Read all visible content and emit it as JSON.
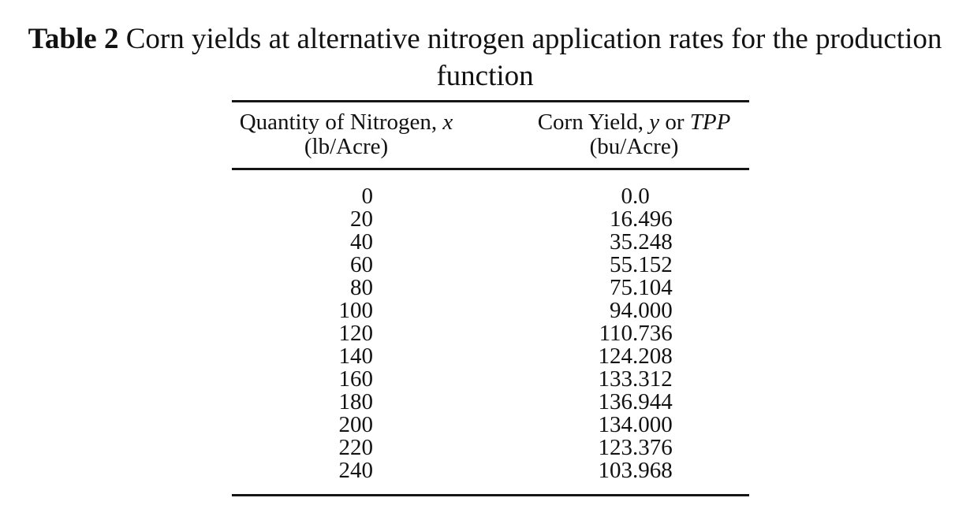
{
  "caption": {
    "label": "Table 2",
    "line1": " Corn yields at alternative nitrogen application rates for the production",
    "line2": "function"
  },
  "table": {
    "columns": [
      {
        "title": "Quantity of Nitrogen, ",
        "var": "x",
        "unit": "(lb/Acre)"
      },
      {
        "title": "Corn Yield, ",
        "var1": "y",
        "conj": " or ",
        "var2": "TPP",
        "unit": "(bu/Acre)"
      }
    ],
    "rows": [
      {
        "x": "0",
        "y": "0.0"
      },
      {
        "x": "20",
        "y": "16.496"
      },
      {
        "x": "40",
        "y": "35.248"
      },
      {
        "x": "60",
        "y": "55.152"
      },
      {
        "x": "80",
        "y": "75.104"
      },
      {
        "x": "100",
        "y": "94.000"
      },
      {
        "x": "120",
        "y": "110.736"
      },
      {
        "x": "140",
        "y": "124.208"
      },
      {
        "x": "160",
        "y": "133.312"
      },
      {
        "x": "180",
        "y": "136.944"
      },
      {
        "x": "200",
        "y": "134.000"
      },
      {
        "x": "220",
        "y": "123.376"
      },
      {
        "x": "240",
        "y": "103.968"
      }
    ]
  },
  "colors": {
    "text": "#121212",
    "rule": "#151515",
    "background": "#ffffff"
  }
}
